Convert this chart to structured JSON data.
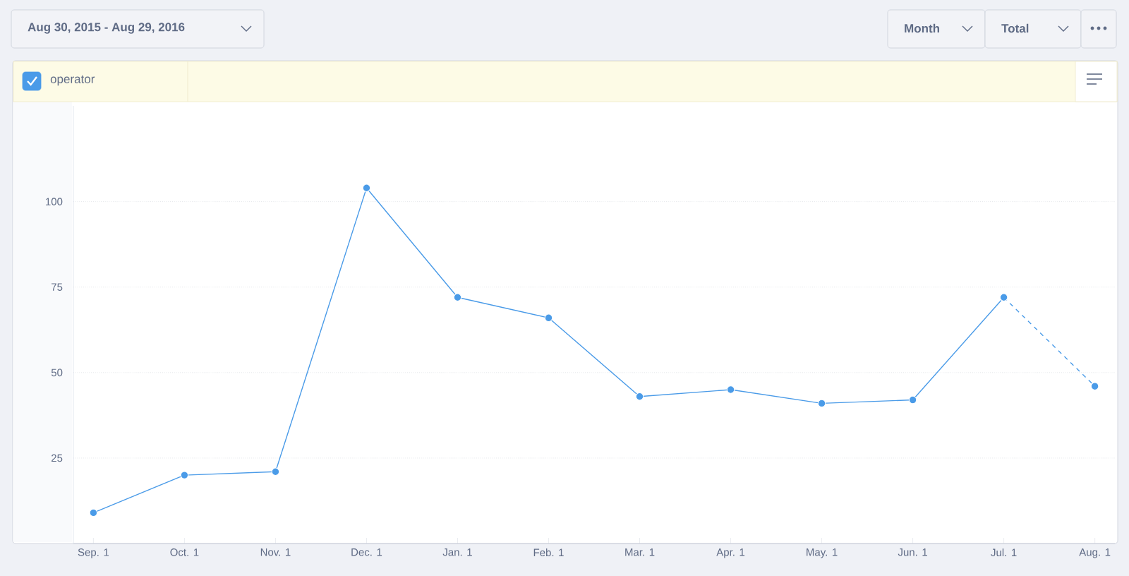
{
  "chart_data": {
    "type": "line",
    "categories": [
      "Sep. 1",
      "Oct. 1",
      "Nov. 1",
      "Dec. 1",
      "Jan. 1",
      "Feb. 1",
      "Mar. 1",
      "Apr. 1",
      "May. 1",
      "Jun. 1",
      "Jul. 1",
      "Aug. 1"
    ],
    "series": [
      {
        "name": "operator",
        "color": "#4a9be8",
        "line_style": "solid",
        "values": [
          9,
          20,
          21,
          104,
          72,
          66,
          43,
          45,
          41,
          42,
          72,
          null
        ]
      },
      {
        "color": "#4a9be8",
        "line_style": "dashed",
        "values": [
          null,
          null,
          null,
          null,
          null,
          null,
          null,
          null,
          null,
          null,
          72,
          46
        ]
      }
    ],
    "ylim": [
      0,
      128
    ],
    "yticks": [
      25,
      50,
      75,
      100
    ],
    "grid": "y",
    "marker": "circle",
    "legend": "top left",
    "annotations": [
      "Aug 30, 2015 - Aug 29, 2016",
      "Month",
      "Total"
    ]
  }
}
